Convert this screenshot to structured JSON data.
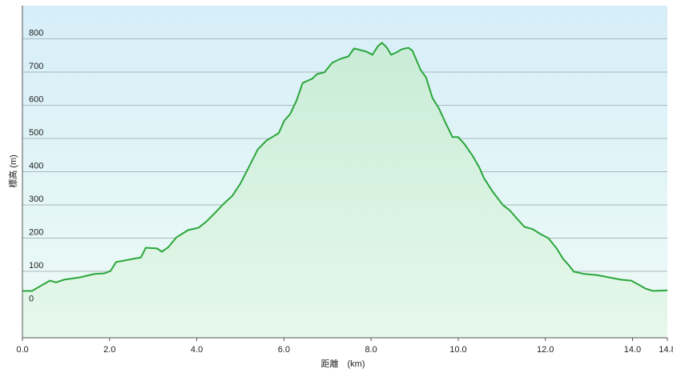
{
  "chart_data": {
    "type": "area",
    "x_label": "距離　(km)",
    "y_label": "標高 (m)",
    "x": [
      0,
      0.22,
      0.4,
      0.63,
      0.77,
      0.96,
      1.32,
      1.65,
      1.88,
      2.02,
      2.15,
      2.72,
      2.83,
      3.09,
      3.2,
      3.35,
      3.53,
      3.8,
      4.04,
      4.23,
      4.41,
      4.6,
      4.82,
      5.0,
      5.18,
      5.4,
      5.6,
      5.73,
      5.88,
      6.01,
      6.14,
      6.29,
      6.43,
      6.65,
      6.76,
      6.93,
      7.11,
      7.3,
      7.48,
      7.61,
      7.76,
      7.9,
      8.03,
      8.16,
      8.25,
      8.35,
      8.46,
      8.58,
      8.71,
      8.86,
      8.95,
      9.14,
      9.26,
      9.41,
      9.56,
      9.71,
      9.87,
      10.0,
      10.15,
      10.33,
      10.48,
      10.59,
      10.79,
      11.03,
      11.18,
      11.34,
      11.52,
      11.71,
      11.89,
      12.07,
      12.26,
      12.41,
      12.54,
      12.65,
      12.9,
      13.18,
      13.46,
      13.73,
      13.97,
      14.14,
      14.3,
      14.47,
      14.8
    ],
    "series": [
      {
        "color": "#2aa63a",
        "values": [
          41,
          41,
          55,
          72,
          67,
          75,
          82,
          92,
          94,
          101,
          128,
          142,
          171,
          169,
          159,
          173,
          202,
          224,
          231,
          251,
          275,
          301,
          328,
          364,
          410,
          467,
          494,
          504,
          516,
          554,
          573,
          614,
          667,
          680,
          694,
          699,
          728,
          740,
          747,
          771,
          766,
          761,
          752,
          778,
          788,
          776,
          752,
          759,
          769,
          773,
          764,
          706,
          684,
          622,
          590,
          547,
          504,
          504,
          482,
          448,
          414,
          381,
          340,
          299,
          284,
          260,
          234,
          227,
          212,
          200,
          169,
          137,
          118,
          99,
          92,
          89,
          82,
          75,
          72,
          60,
          48,
          41,
          43
        ]
      }
    ],
    "xlim": [
      0,
      14.8
    ],
    "ylim": [
      -100,
      900
    ],
    "xticks": [
      {
        "value": 0,
        "label": "0.0"
      },
      {
        "value": 2,
        "label": "2.0"
      },
      {
        "value": 4,
        "label": "4.0"
      },
      {
        "value": 6,
        "label": "6.0"
      },
      {
        "value": 8,
        "label": "8.0"
      },
      {
        "value": 10,
        "label": "10.0"
      },
      {
        "value": 12,
        "label": "12.0"
      },
      {
        "value": 14,
        "label": "14.0"
      },
      {
        "value": 14.8,
        "label": "14.8"
      }
    ],
    "yticks": [
      0,
      100,
      200,
      300,
      400,
      500,
      600,
      700,
      800
    ],
    "grid": true
  }
}
